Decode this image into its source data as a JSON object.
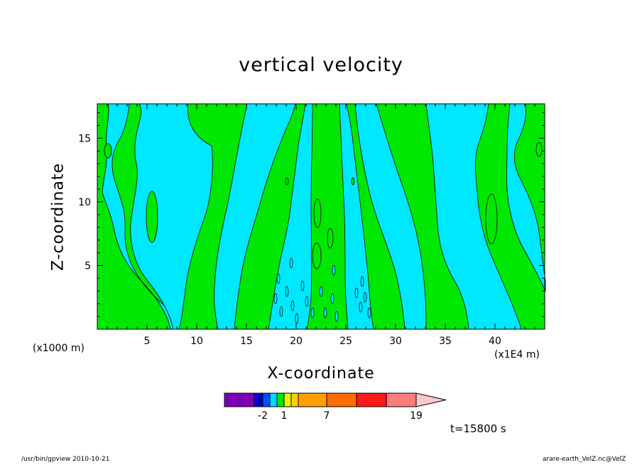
{
  "chart_data": {
    "type": "heatmap",
    "title": "vertical velocity",
    "xlabel": "X-coordinate",
    "ylabel": "Z-coordinate",
    "x_unit_left": "(x1000 m)",
    "x_unit_right": "(x1E4 m)",
    "xlim": [
      0,
      45
    ],
    "ylim": [
      0,
      17.7
    ],
    "x_ticks": [
      {
        "value": 5,
        "label": "5"
      },
      {
        "value": 10,
        "label": "10"
      },
      {
        "value": 15,
        "label": "15"
      },
      {
        "value": 20,
        "label": "20"
      },
      {
        "value": 25,
        "label": "25"
      },
      {
        "value": 30,
        "label": "30"
      },
      {
        "value": 35,
        "label": "35"
      },
      {
        "value": 40,
        "label": "40"
      }
    ],
    "y_ticks": [
      {
        "value": 5,
        "label": "5"
      },
      {
        "value": 10,
        "label": "10"
      },
      {
        "value": 15,
        "label": "15"
      }
    ],
    "fill_colors": {
      "negative": "#00e8ff",
      "positive": "#00e800"
    },
    "colorbar": {
      "colors": [
        "#7b00b8",
        "#0000c8",
        "#0050ff",
        "#00d8ff",
        "#00e800",
        "#f0f000",
        "#ffd000",
        "#ffa000",
        "#ff6c00",
        "#ff1818",
        "#ff7c7c",
        "#ffc8c8"
      ],
      "tick_labels": [
        {
          "value": -2,
          "label": "-2"
        },
        {
          "value": 1,
          "label": "1"
        },
        {
          "value": 7,
          "label": "7"
        },
        {
          "value": 19,
          "label": "19"
        }
      ]
    }
  },
  "time_label": "t=15800 s",
  "footer_left": "/usr/bin/gpview   2010-10-21",
  "footer_right": "arare-earth_VelZ.nc@VelZ"
}
